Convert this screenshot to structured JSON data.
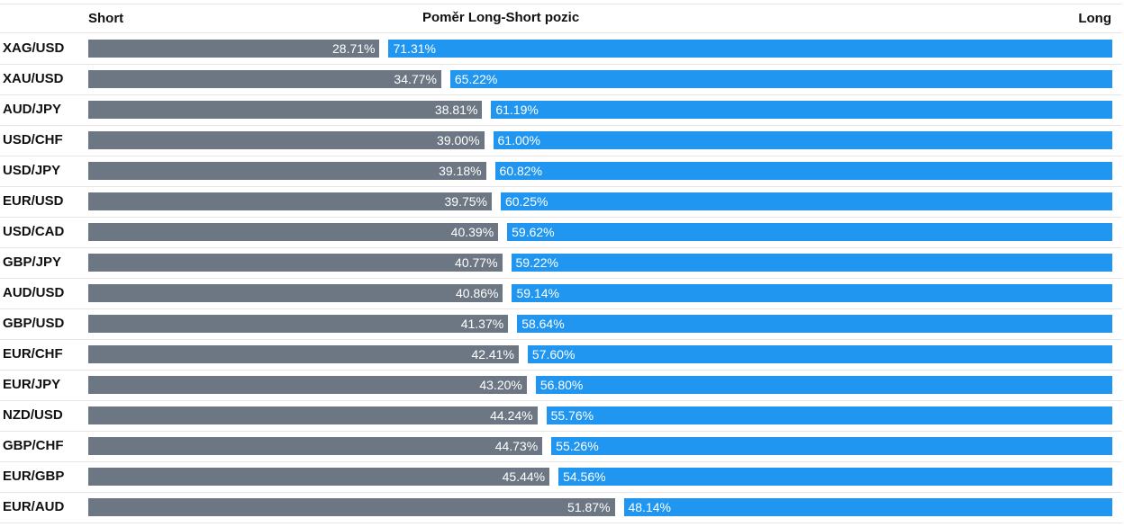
{
  "chart_data": {
    "type": "bar",
    "title": "Poměr Long-Short pozic",
    "short_label": "Short",
    "long_label": "Long",
    "categories": [
      "XAG/USD",
      "XAU/USD",
      "AUD/JPY",
      "USD/CHF",
      "USD/JPY",
      "EUR/USD",
      "USD/CAD",
      "GBP/JPY",
      "AUD/USD",
      "GBP/USD",
      "EUR/CHF",
      "EUR/JPY",
      "NZD/USD",
      "GBP/CHF",
      "EUR/GBP",
      "EUR/AUD"
    ],
    "series": [
      {
        "name": "Short",
        "color": "#6d7784",
        "values": [
          28.71,
          34.77,
          38.81,
          39.0,
          39.18,
          39.75,
          40.39,
          40.77,
          40.86,
          41.37,
          42.41,
          43.2,
          44.24,
          44.73,
          45.44,
          51.87
        ],
        "labels": [
          "28.71%",
          "34.77%",
          "38.81%",
          "39.00%",
          "39.18%",
          "39.75%",
          "40.39%",
          "40.77%",
          "40.86%",
          "41.37%",
          "42.41%",
          "43.20%",
          "44.24%",
          "44.73%",
          "45.44%",
          "51.87%"
        ]
      },
      {
        "name": "Long",
        "color": "#2196f0",
        "values": [
          71.31,
          65.22,
          61.19,
          61.0,
          60.82,
          60.25,
          59.62,
          59.22,
          59.14,
          58.64,
          57.6,
          56.8,
          55.76,
          55.26,
          54.56,
          48.14
        ],
        "labels": [
          "71.31%",
          "65.22%",
          "61.19%",
          "61.00%",
          "60.82%",
          "60.25%",
          "59.62%",
          "59.22%",
          "59.14%",
          "58.64%",
          "57.60%",
          "56.80%",
          "55.76%",
          "55.26%",
          "54.56%",
          "48.14%"
        ]
      }
    ],
    "stacked": true,
    "orientation": "horizontal",
    "xlim": [
      0,
      100
    ],
    "grid": false,
    "legend": "none"
  }
}
